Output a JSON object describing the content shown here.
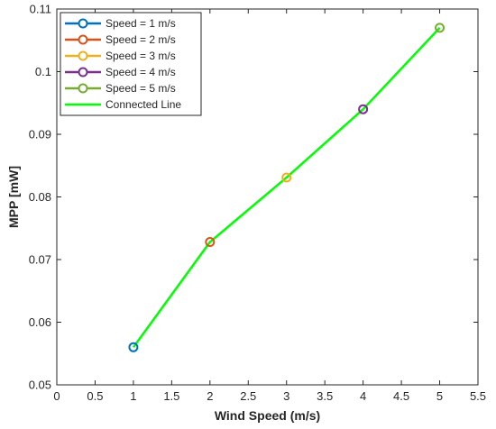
{
  "chart_data": {
    "type": "line",
    "xlabel": "Wind Speed (m/s)",
    "ylabel": "MPP [mW]",
    "xlim": [
      0,
      5.5
    ],
    "ylim": [
      0.05,
      0.11
    ],
    "xticks": [
      0,
      0.5,
      1,
      1.5,
      2,
      2.5,
      3,
      3.5,
      4,
      4.5,
      5,
      5.5
    ],
    "xtick_labels": [
      "0",
      "0.5",
      "1",
      "1.5",
      "2",
      "2.5",
      "3",
      "3.5",
      "4",
      "4.5",
      "5",
      "5.5"
    ],
    "yticks": [
      0.05,
      0.06,
      0.07,
      0.08,
      0.09,
      0.1,
      0.11
    ],
    "ytick_labels": [
      "0.05",
      "0.06",
      "0.07",
      "0.08",
      "0.09",
      "0.1",
      "0.11"
    ],
    "grid": false,
    "legend_position": "top-left",
    "series": [
      {
        "name": "Speed = 1 m/s",
        "x": [
          1
        ],
        "y": [
          0.056
        ],
        "marker": "circle",
        "color": "#0072BD"
      },
      {
        "name": "Speed = 2 m/s",
        "x": [
          2
        ],
        "y": [
          0.0728
        ],
        "marker": "circle",
        "color": "#D95319"
      },
      {
        "name": "Speed = 3 m/s",
        "x": [
          3
        ],
        "y": [
          0.0831
        ],
        "marker": "circle",
        "color": "#EDB120"
      },
      {
        "name": "Speed = 4 m/s",
        "x": [
          4
        ],
        "y": [
          0.094
        ],
        "marker": "circle",
        "color": "#7E2F8E"
      },
      {
        "name": "Speed = 5 m/s",
        "x": [
          5
        ],
        "y": [
          0.107
        ],
        "marker": "circle",
        "color": "#77AC30"
      }
    ],
    "connected_line": {
      "name": "Connected Line",
      "x": [
        1,
        2,
        3,
        4,
        5
      ],
      "y": [
        0.056,
        0.0728,
        0.0831,
        0.094,
        0.107
      ],
      "color": "#00FF00"
    }
  }
}
